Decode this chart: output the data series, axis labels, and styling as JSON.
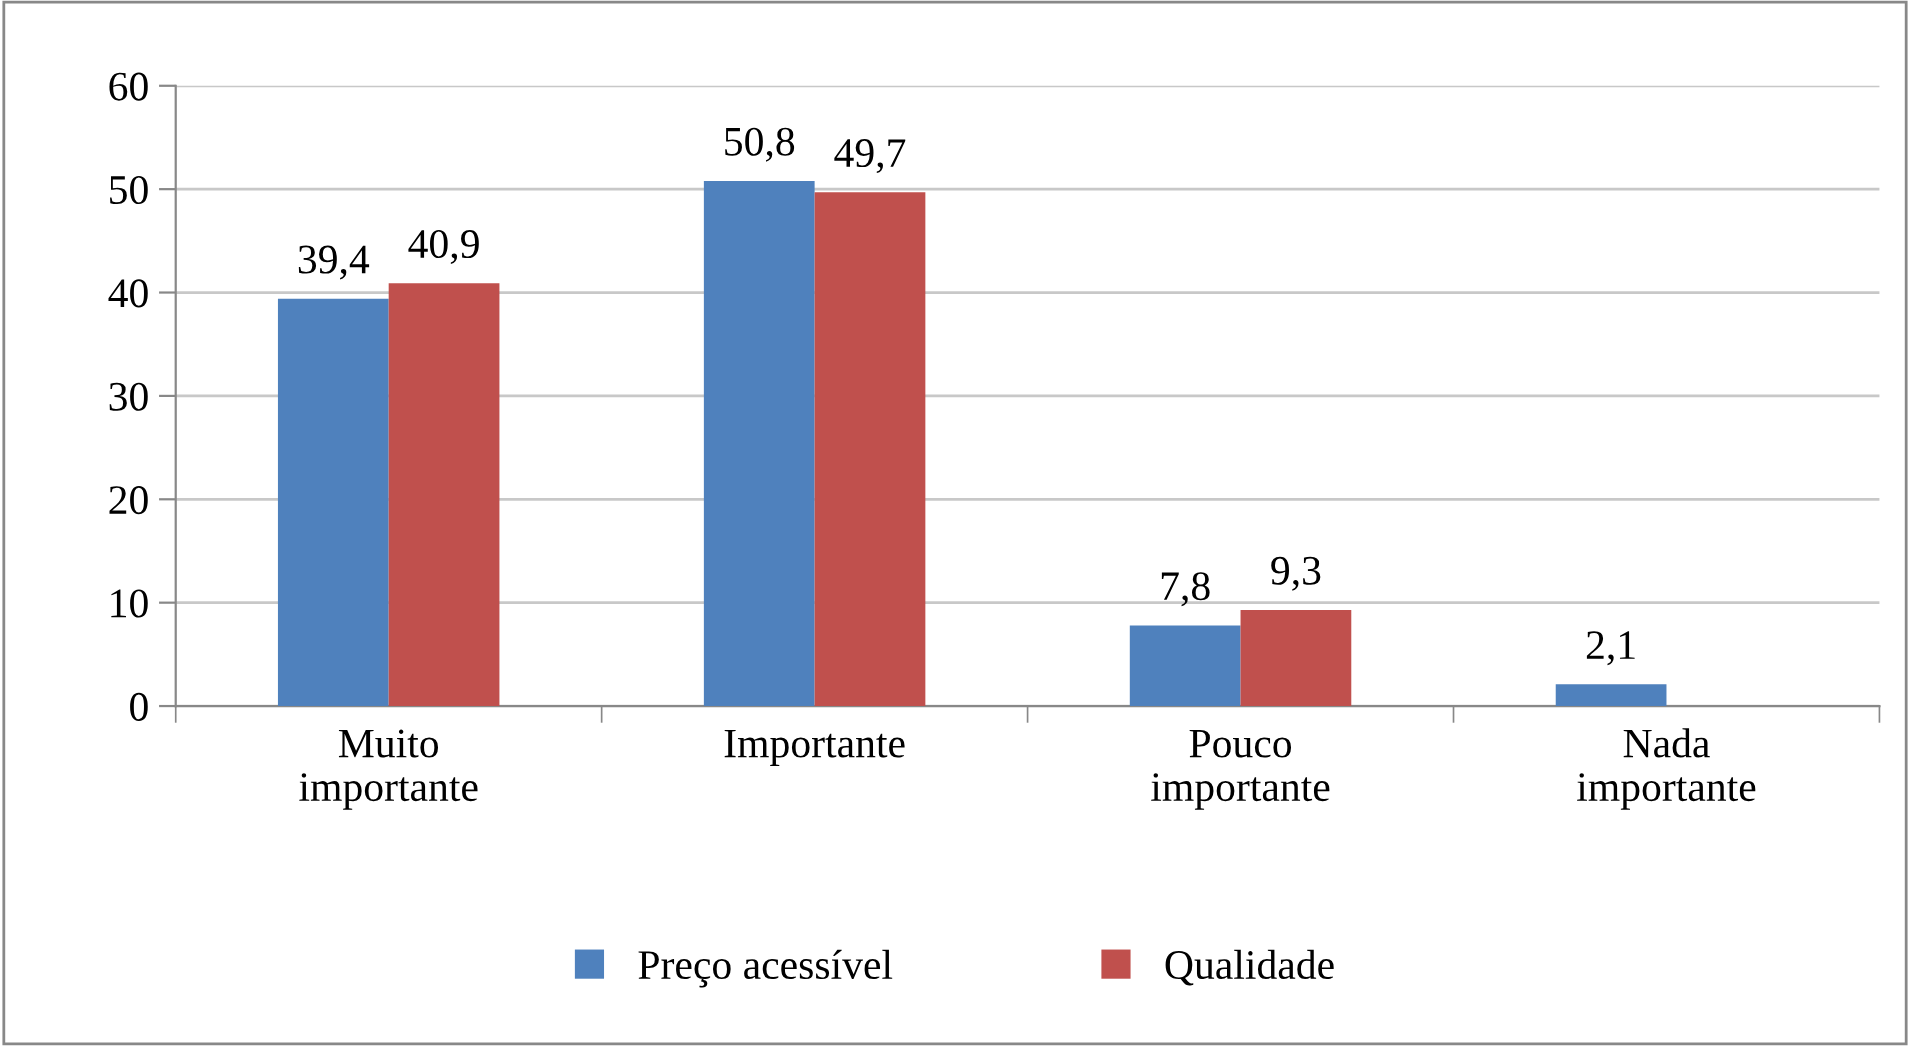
{
  "chart_data": {
    "type": "bar",
    "categories": [
      "Muito\nimportante",
      "Importante",
      "Pouco\nimportante",
      "Nada\nimportante"
    ],
    "series": [
      {
        "name": "Preço acessível",
        "color": "#4f81bd",
        "values": [
          39.4,
          50.8,
          7.8,
          2.1
        ],
        "value_labels": [
          "39,4",
          "50,8",
          "7,8",
          "2,1"
        ]
      },
      {
        "name": "Qualidade",
        "color": "#c0504d",
        "values": [
          40.9,
          49.7,
          9.3,
          null
        ],
        "value_labels": [
          "40,9",
          "49,7",
          "9,3",
          null
        ]
      }
    ],
    "ylim": [
      0,
      60
    ],
    "yticks": [
      0,
      10,
      20,
      30,
      40,
      50,
      60
    ],
    "grid": "y",
    "legend": "bottom"
  }
}
